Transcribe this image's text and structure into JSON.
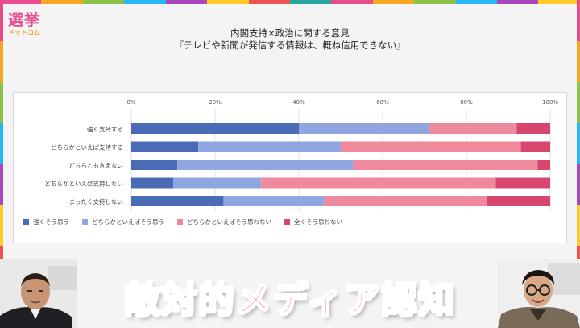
{
  "logo": {
    "main": "選挙",
    "sub": "ドットコム"
  },
  "frame_colors": [
    "#e94b8c",
    "#f5a623",
    "#8bc34a",
    "#29b6f6",
    "#ab47bc",
    "#ffca28",
    "#ef5350",
    "#26a69a"
  ],
  "title": {
    "line1": "内閣支持×政治に関する意見",
    "line2": "『テレビや新聞が発信する情報は、概ね信用できない』"
  },
  "chart_data": {
    "type": "bar",
    "orientation": "horizontal",
    "stacked": true,
    "percent_scale": true,
    "categories": [
      "強く支持する",
      "どちらかといえば支持する",
      "どちらとも言えない",
      "どちらかといえば支持しない",
      "まったく支持しない"
    ],
    "series": [
      {
        "name": "強くそう思う",
        "color": "#4a6cb6",
        "values": [
          40,
          16,
          11,
          10,
          22
        ]
      },
      {
        "name": "どちらかといえばそう思う",
        "color": "#8fa6e0",
        "values": [
          31,
          34,
          42,
          21,
          24
        ]
      },
      {
        "name": "どちらかといえばそう思わない",
        "color": "#ef8a9c",
        "values": [
          21,
          43,
          44,
          56,
          39
        ]
      },
      {
        "name": "全くそう思わない",
        "color": "#d6466f",
        "values": [
          8,
          7,
          3,
          13,
          15
        ]
      }
    ],
    "xticks": [
      "0%",
      "20%",
      "40%",
      "60%",
      "80%",
      "100%"
    ],
    "xlim": [
      0,
      100
    ],
    "grid": true,
    "legend": "bottom-left"
  },
  "banner": {
    "text": "敵対的メディア認知"
  }
}
